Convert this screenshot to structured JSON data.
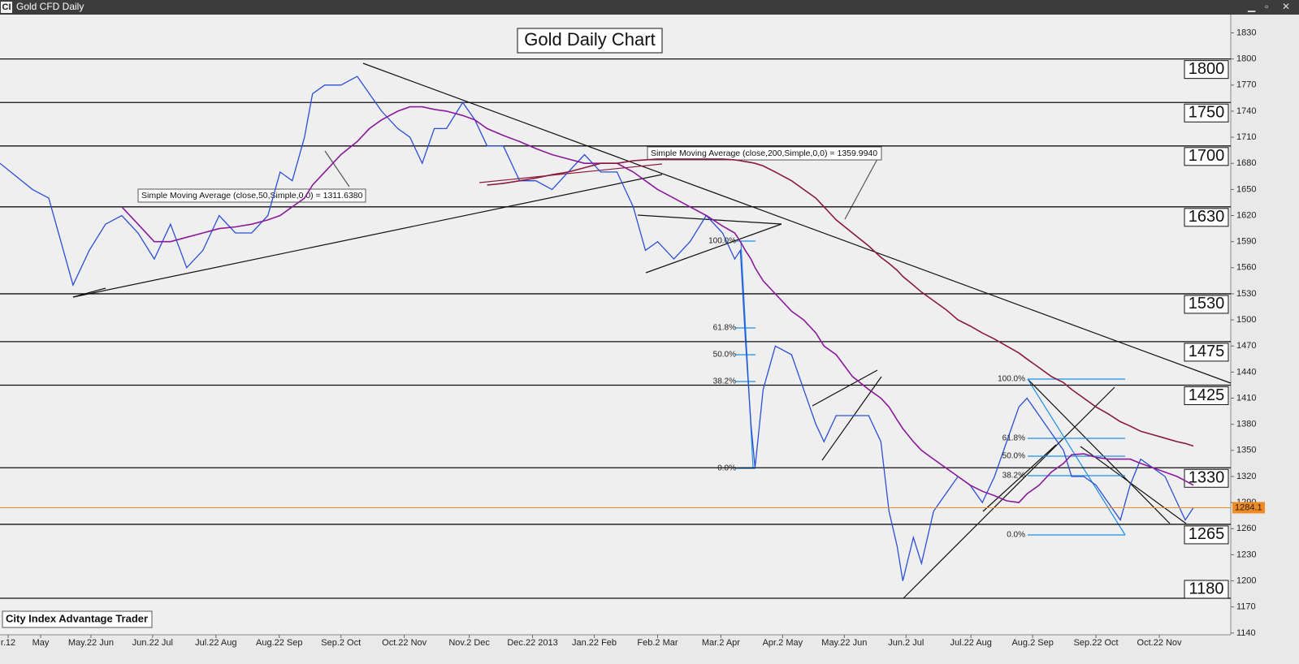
{
  "window_title": "Gold CFD Daily",
  "app_icon": "CI",
  "footer": "City Index Advantage Trader",
  "chart_data": {
    "type": "line",
    "title": "Gold Daily Chart",
    "x": [
      0,
      10,
      15,
      18.75,
      22.5,
      27.5,
      32.5,
      37.5,
      42.5,
      47.5,
      52.5,
      57.5,
      62.5,
      67.5,
      72.5,
      77.5,
      82.5,
      86.25,
      90,
      93.75,
      96.25,
      100,
      105,
      110,
      113.75,
      117.5,
      122.5,
      126.25,
      130,
      133.75,
      137.5,
      142.5,
      146.25,
      150,
      155,
      160,
      165,
      170,
      175,
      180,
      185,
      190,
      195,
      198.75,
      202.5,
      207.5,
      212.5,
      217.5,
      222.5,
      226.25,
      228,
      229.5,
      231.25,
      232.5,
      235,
      238.75,
      243.75,
      247.5,
      251.25,
      253.75,
      257.5,
      262.5,
      267.5,
      271.25,
      273.75,
      276.25,
      278,
      281.25,
      283.75,
      287.5,
      291.25,
      295,
      298.75,
      302.5,
      306.25,
      310,
      313.75,
      316.25,
      320,
      323.75,
      327.5,
      330,
      333.75,
      337.5,
      341.25,
      345,
      348,
      351.25,
      355,
      358.75,
      362.5,
      365,
      367.5
    ],
    "series": [
      {
        "color": "#2a4fd6",
        "values": [
          1680,
          1650,
          1640,
          1590,
          1540,
          1580,
          1610,
          1620,
          1600,
          1570,
          1610,
          1560,
          1580,
          1620,
          1600,
          1600,
          1620,
          1670,
          1660,
          1710,
          1760,
          1770,
          1770,
          1780,
          1760,
          1740,
          1720,
          1710,
          1680,
          1720,
          1720,
          1750,
          1730,
          1700,
          1700,
          1660,
          1660,
          1650,
          1670,
          1690,
          1670,
          1670,
          1630,
          1580,
          1590,
          1570,
          1590,
          1620,
          1600,
          1570,
          1580,
          1480,
          1380,
          1330,
          1420,
          1470,
          1460,
          1420,
          1380,
          1360,
          1390,
          1390,
          1390,
          1360,
          1280,
          1240,
          1200,
          1250,
          1220,
          1280,
          1300,
          1320,
          1310,
          1290,
          1320,
          1360,
          1400,
          1410,
          1390,
          1370,
          1350,
          1320,
          1320,
          1310,
          1290,
          1270,
          1310,
          1340,
          1330,
          1320,
          1290,
          1270,
          1284.1
        ]
      },
      {
        "color": "#8b1a9b",
        "values": [
          null,
          null,
          null,
          null,
          null,
          null,
          null,
          1630,
          1610,
          1590,
          1590,
          1595,
          1600,
          1605,
          1607,
          1610,
          1615,
          1620,
          1630,
          1640,
          1655,
          1670,
          1690,
          1705,
          1720,
          1730,
          1740,
          1745,
          1745,
          1742,
          1740,
          1735,
          1730,
          1720,
          1712,
          1705,
          1697,
          1690,
          1685,
          1680,
          1680,
          1680,
          1670,
          1660,
          1650,
          1640,
          1630,
          1620,
          1608,
          1600,
          1590,
          1580,
          1570,
          1560,
          1545,
          1530,
          1510,
          1500,
          1485,
          1470,
          1460,
          1435,
          1420,
          1410,
          1400,
          1385,
          1375,
          1360,
          1350,
          1340,
          1330,
          1320,
          1310,
          1303,
          1298,
          1292,
          1290,
          1300,
          1310,
          1325,
          1335,
          1345,
          1346,
          1342,
          1340,
          1340,
          1340,
          1335,
          1330,
          1325,
          1320,
          1315,
          1310
        ]
      },
      {
        "color": "#8a1a3a",
        "values": [
          null,
          null,
          null,
          null,
          null,
          null,
          null,
          null,
          null,
          null,
          null,
          null,
          null,
          null,
          null,
          null,
          null,
          null,
          null,
          null,
          null,
          null,
          null,
          null,
          null,
          null,
          null,
          null,
          null,
          null,
          null,
          null,
          null,
          1655,
          1657,
          1660,
          1663,
          1667,
          1670,
          1675,
          1680,
          1680,
          1683,
          1684,
          1685,
          1685,
          1685,
          1685,
          1685,
          1684,
          1683,
          1682,
          1681,
          1680,
          1677,
          1670,
          1660,
          1650,
          1640,
          1630,
          1615,
          1600,
          1585,
          1572,
          1565,
          1557,
          1550,
          1540,
          1532,
          1522,
          1512,
          1500,
          1493,
          1485,
          1478,
          1470,
          1462,
          1455,
          1445,
          1435,
          1428,
          1420,
          1410,
          1400,
          1392,
          1383,
          1378,
          1372,
          1368,
          1364,
          1360,
          1358,
          1355
        ]
      }
    ],
    "xlim": [
      0,
      379
    ],
    "xticks": [
      {
        "value": 2.5,
        "label": "r.12"
      },
      {
        "value": 12.5,
        "label": "May"
      },
      {
        "value": 28,
        "label": "May.22 Jun"
      },
      {
        "value": 47,
        "label": "Jun.22 Jul"
      },
      {
        "value": 66.5,
        "label": "Jul.22 Aug"
      },
      {
        "value": 86,
        "label": "Aug.22 Sep"
      },
      {
        "value": 105,
        "label": "Sep.2 Oct"
      },
      {
        "value": 124.5,
        "label": "Oct.22 Nov"
      },
      {
        "value": 144.5,
        "label": "Nov.2 Dec"
      },
      {
        "value": 164,
        "label": "Dec.22 2013"
      },
      {
        "value": 183,
        "label": "Jan.22 Feb"
      },
      {
        "value": 202.5,
        "label": "Feb.2 Mar"
      },
      {
        "value": 222,
        "label": "Mar.2 Apr"
      },
      {
        "value": 241,
        "label": "Apr.2 May"
      },
      {
        "value": 260,
        "label": "May.22 Jun"
      },
      {
        "value": 279,
        "label": "Jun.2 Jul"
      },
      {
        "value": 299,
        "label": "Jul.22 Aug"
      },
      {
        "value": 318,
        "label": "Aug.2 Sep"
      },
      {
        "value": 337.5,
        "label": "Sep.22 Oct"
      },
      {
        "value": 357,
        "label": "Oct.22 Nov"
      }
    ],
    "ylim": [
      1138,
      1851
    ],
    "yticks": [
      1140,
      1170,
      1200,
      1230,
      1260,
      1290,
      1320,
      1350,
      1380,
      1410,
      1440,
      1470,
      1500,
      1530,
      1560,
      1590,
      1620,
      1650,
      1680,
      1710,
      1740,
      1770,
      1800,
      1830
    ],
    "levels": [
      1800,
      1750,
      1700,
      1630,
      1530,
      1475,
      1425,
      1330,
      1265,
      1180
    ],
    "last_price": 1284.1,
    "annotations": [
      "Simple Moving Average (close,50,Simple,0,0) = 1311.6380",
      "Simple Moving Average (close,200,Simple,0,0) = 1359.9940"
    ],
    "fib_labels_1": [
      "100.0%",
      "61.8%",
      "50.0%",
      "38.2%",
      "0.0%"
    ],
    "fib_labels_2": [
      "100.0%",
      "61.8%",
      "50.0%",
      "38.2%",
      "0.0%"
    ]
  }
}
